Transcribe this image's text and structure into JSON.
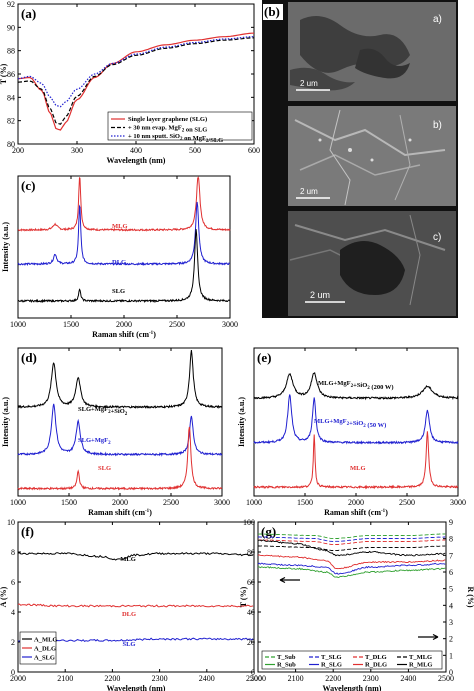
{
  "chart_data": [
    {
      "panel": "(a)",
      "type": "line",
      "xlabel": "Wavelength (nm)",
      "ylabel": "T (%)",
      "xlim": [
        200,
        600
      ],
      "ylim": [
        80,
        92
      ],
      "xticks": [
        200,
        300,
        400,
        500,
        600
      ],
      "yticks": [
        80,
        82,
        84,
        86,
        88,
        90,
        92
      ],
      "legend_position": "lower-right",
      "series": [
        {
          "name": "Single layer graphene (SLG)",
          "color": "#e03030",
          "style": "solid",
          "x": [
            200,
            220,
            240,
            255,
            265,
            272,
            280,
            300,
            330,
            360,
            400,
            450,
            500,
            550,
            600
          ],
          "y": [
            85.6,
            85.7,
            84.6,
            82.6,
            81.3,
            81.2,
            81.8,
            83.8,
            85.7,
            86.9,
            87.9,
            88.5,
            88.9,
            89.2,
            89.5
          ]
        },
        {
          "name": "+ 30 nm evap. MgF2 on SLG",
          "color": "#000000",
          "style": "dash",
          "x": [
            200,
            220,
            240,
            255,
            265,
            272,
            280,
            300,
            330,
            360,
            400,
            450,
            500,
            550,
            600
          ],
          "y": [
            85.3,
            85.4,
            84.7,
            83.0,
            81.8,
            81.7,
            82.3,
            84.1,
            85.8,
            86.8,
            87.6,
            88.2,
            88.6,
            88.9,
            89.1
          ]
        },
        {
          "name": "+ 10 nm sputt. SiO2 on MgF2/SLG",
          "color": "#2020d0",
          "style": "dot",
          "x": [
            200,
            220,
            240,
            255,
            265,
            272,
            280,
            300,
            330,
            360,
            400,
            450,
            500,
            550,
            600
          ],
          "y": [
            85.6,
            85.8,
            85.2,
            84.0,
            83.3,
            83.2,
            83.6,
            84.7,
            86.0,
            86.9,
            87.7,
            88.3,
            88.7,
            89.0,
            89.2
          ]
        }
      ]
    },
    {
      "panel": "(c)",
      "type": "line",
      "xlabel": "Raman shift (cm⁻¹)",
      "ylabel": "Intensity (a.u.)",
      "xlim": [
        1000,
        3000
      ],
      "xticks": [
        1000,
        1500,
        2000,
        2500,
        3000
      ],
      "annotations": [
        "MLG",
        "DLG",
        "SLG"
      ],
      "series": [
        {
          "name": "MLG",
          "color": "#e03030",
          "baseline": 0.62,
          "peaks": [
            [
              1350,
              0.04,
              25
            ],
            [
              1582,
              0.38,
              12
            ],
            [
              2700,
              0.38,
              20
            ]
          ]
        },
        {
          "name": "DLG",
          "color": "#2020d0",
          "baseline": 0.38,
          "peaks": [
            [
              1350,
              0.07,
              18
            ],
            [
              1582,
              0.42,
              12
            ],
            [
              2690,
              0.44,
              18
            ]
          ]
        },
        {
          "name": "SLG",
          "color": "#000000",
          "baseline": 0.12,
          "peaks": [
            [
              1582,
              0.08,
              12
            ],
            [
              2680,
              0.5,
              18
            ]
          ]
        }
      ]
    },
    {
      "panel": "(d)",
      "type": "line",
      "xlabel": "Raman shift (cm⁻¹)",
      "ylabel": "Intensity (a.u.)",
      "xlim": [
        1000,
        3000
      ],
      "xticks": [
        1000,
        1500,
        2000,
        2500,
        3000
      ],
      "annotations": [
        "SLG+MgF2+SiO2",
        "SLG+MgF2",
        "SLG"
      ],
      "series": [
        {
          "name": "SLG+MgF2+SiO2",
          "color": "#000000",
          "baseline": 0.6,
          "peaks": [
            [
              1350,
              0.3,
              28
            ],
            [
              1590,
              0.2,
              28
            ],
            [
              2700,
              0.38,
              22
            ]
          ]
        },
        {
          "name": "SLG+MgF2",
          "color": "#2020d0",
          "baseline": 0.28,
          "peaks": [
            [
              1350,
              0.34,
              26
            ],
            [
              1590,
              0.22,
              26
            ],
            [
              2700,
              0.26,
              22
            ]
          ]
        },
        {
          "name": "SLG",
          "color": "#e03030",
          "baseline": 0.05,
          "peaks": [
            [
              1590,
              0.12,
              14
            ],
            [
              2680,
              0.42,
              18
            ]
          ]
        }
      ]
    },
    {
      "panel": "(e)",
      "type": "line",
      "xlabel": "Raman shift (cm⁻¹)",
      "ylabel": "Intensity (a.u.)",
      "xlim": [
        1000,
        3000
      ],
      "xticks": [
        1000,
        1500,
        2000,
        2500,
        3000
      ],
      "annotations": [
        "MLG+MgF2+SiO2 (200 W)",
        "MLG+MgF2+SiO2 (50 W)",
        "MLG"
      ],
      "series": [
        {
          "name": "MLG+MgF2+SiO2 (200 W)",
          "color": "#000000",
          "baseline": 0.66,
          "peaks": [
            [
              1350,
              0.16,
              40
            ],
            [
              1590,
              0.17,
              35
            ],
            [
              2700,
              0.08,
              60
            ]
          ]
        },
        {
          "name": "MLG+MgF2+SiO2 (50 W)",
          "color": "#2020d0",
          "baseline": 0.36,
          "peaks": [
            [
              1350,
              0.32,
              24
            ],
            [
              1590,
              0.3,
              20
            ],
            [
              2700,
              0.22,
              24
            ]
          ]
        },
        {
          "name": "MLG",
          "color": "#e03030",
          "baseline": 0.06,
          "peaks": [
            [
              1590,
              0.36,
              10
            ],
            [
              2700,
              0.38,
              15
            ]
          ]
        }
      ]
    },
    {
      "panel": "(f)",
      "type": "line",
      "xlabel": "Wavelength (nm)",
      "ylabel": "A (%)",
      "xlim": [
        2000,
        2500
      ],
      "ylim": [
        0,
        10
      ],
      "xticks": [
        2000,
        2100,
        2200,
        2300,
        2400,
        2500
      ],
      "yticks": [
        0,
        2,
        4,
        6,
        8,
        10
      ],
      "annotations": [
        "MLG",
        "DLG",
        "SLG"
      ],
      "legend_position": "lower-left",
      "series": [
        {
          "name": "A_MLG",
          "color": "#000000",
          "x": [
            2000,
            2100,
            2180,
            2210,
            2250,
            2300,
            2400,
            2500
          ],
          "y": [
            7.9,
            7.9,
            7.7,
            7.5,
            7.8,
            7.9,
            7.9,
            7.8
          ]
        },
        {
          "name": "A_DLG",
          "color": "#e03030",
          "x": [
            2000,
            2100,
            2200,
            2300,
            2400,
            2500
          ],
          "y": [
            4.5,
            4.4,
            4.4,
            4.4,
            4.4,
            4.4
          ]
        },
        {
          "name": "A_SLG",
          "color": "#2020d0",
          "x": [
            2000,
            2100,
            2200,
            2300,
            2400,
            2500
          ],
          "y": [
            2.1,
            2.1,
            2.1,
            2.2,
            2.2,
            2.2
          ]
        }
      ]
    },
    {
      "panel": "(g)",
      "type": "line",
      "xlabel": "Wavelength (nm)",
      "ylabel": "T (%)",
      "y2label": "R (%)",
      "xlim": [
        2000,
        2500
      ],
      "ylim": [
        0,
        100
      ],
      "y2lim": [
        0,
        9
      ],
      "xticks": [
        2000,
        2100,
        2200,
        2300,
        2400,
        2500
      ],
      "yticks": [
        0,
        20,
        40,
        60,
        80,
        100
      ],
      "y2ticks": [
        0,
        1,
        2,
        3,
        4,
        5,
        6,
        7,
        8,
        9
      ],
      "legend_position": "bottom",
      "series": [
        {
          "name": "T_Sub",
          "axis": "left",
          "color": "#30a030",
          "style": "dash",
          "x": [
            2000,
            2150,
            2200,
            2300,
            2400,
            2500
          ],
          "y": [
            92,
            91,
            89,
            91,
            91,
            92
          ]
        },
        {
          "name": "T_SLG",
          "axis": "left",
          "color": "#2020d0",
          "style": "dash",
          "x": [
            2000,
            2150,
            2200,
            2300,
            2400,
            2500
          ],
          "y": [
            90,
            89,
            87,
            89,
            89,
            90
          ]
        },
        {
          "name": "T_DLG",
          "axis": "left",
          "color": "#e03030",
          "style": "dash",
          "x": [
            2000,
            2150,
            2200,
            2300,
            2400,
            2500
          ],
          "y": [
            88,
            87,
            85,
            87,
            87,
            88
          ]
        },
        {
          "name": "T_MLG",
          "axis": "left",
          "color": "#000000",
          "style": "dash",
          "x": [
            2000,
            2150,
            2200,
            2300,
            2400,
            2500
          ],
          "y": [
            84,
            83,
            81,
            83,
            83,
            84
          ]
        },
        {
          "name": "R_Sub",
          "axis": "right",
          "color": "#30a030",
          "style": "solid",
          "x": [
            2000,
            2100,
            2180,
            2210,
            2300,
            2400,
            2500
          ],
          "y": [
            6.3,
            6.2,
            6.0,
            5.7,
            6.0,
            6.1,
            6.2
          ]
        },
        {
          "name": "R_SLG",
          "axis": "right",
          "color": "#2020d0",
          "style": "solid",
          "x": [
            2000,
            2100,
            2180,
            2210,
            2300,
            2400,
            2500
          ],
          "y": [
            6.5,
            6.4,
            6.3,
            5.9,
            6.3,
            6.4,
            6.5
          ]
        },
        {
          "name": "R_DLG",
          "axis": "right",
          "color": "#e03030",
          "style": "solid",
          "x": [
            2000,
            2100,
            2180,
            2210,
            2300,
            2400,
            2500
          ],
          "y": [
            7.0,
            6.9,
            6.7,
            6.2,
            6.6,
            6.6,
            6.7
          ]
        },
        {
          "name": "R_MLG",
          "axis": "right",
          "color": "#000000",
          "style": "solid",
          "x": [
            2000,
            2100,
            2180,
            2210,
            2300,
            2400,
            2500
          ],
          "y": [
            7.9,
            7.7,
            7.3,
            7.0,
            7.2,
            7.0,
            7.1
          ]
        }
      ]
    }
  ],
  "sem": {
    "panel_label": "(b)",
    "images": [
      {
        "tag": "a)",
        "scale": "2 um"
      },
      {
        "tag": "b)",
        "scale": "2 um"
      },
      {
        "tag": "c)",
        "scale": "2 um"
      }
    ]
  },
  "colors": {
    "red": "#e03030",
    "blue": "#2020d0",
    "black": "#000000",
    "green": "#30a030"
  }
}
